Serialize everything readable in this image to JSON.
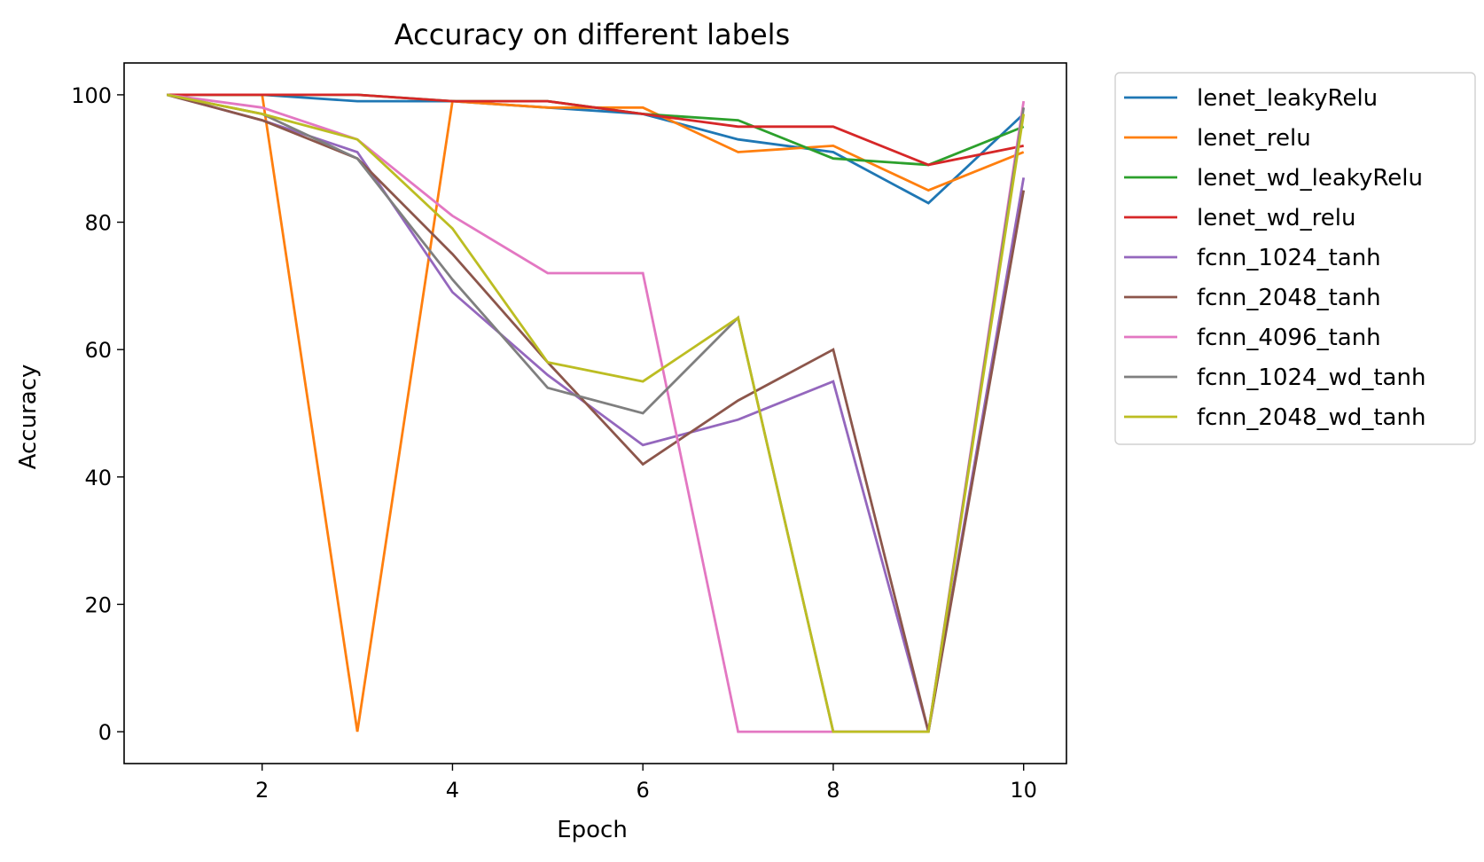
{
  "chart_data": {
    "type": "line",
    "title": "Accuracy on different labels",
    "xlabel": "Epoch",
    "ylabel": "Accuracy",
    "xlim": [
      0.55,
      10.45
    ],
    "ylim": [
      -5,
      105
    ],
    "xticks": [
      2,
      4,
      6,
      8,
      10
    ],
    "yticks": [
      0,
      20,
      40,
      60,
      80,
      100
    ],
    "grid": false,
    "legend_position": "outside-right",
    "x": [
      1,
      2,
      3,
      4,
      5,
      6,
      7,
      8,
      9,
      10
    ],
    "series": [
      {
        "name": "lenet_leakyRelu",
        "color": "#1f77b4",
        "values": [
          100,
          100,
          99,
          99,
          98,
          97,
          93,
          91,
          83,
          97
        ]
      },
      {
        "name": "lenet_relu",
        "color": "#ff7f0e",
        "values": [
          100,
          100,
          0,
          99,
          98,
          98,
          91,
          92,
          85,
          91
        ]
      },
      {
        "name": "lenet_wd_leakyRelu",
        "color": "#2ca02c",
        "values": [
          100,
          100,
          100,
          99,
          99,
          97,
          96,
          90,
          89,
          95
        ]
      },
      {
        "name": "lenet_wd_relu",
        "color": "#d62728",
        "values": [
          100,
          100,
          100,
          99,
          99,
          97,
          95,
          95,
          89,
          92
        ]
      },
      {
        "name": "fcnn_1024_tanh",
        "color": "#9467bd",
        "values": [
          100,
          96,
          91,
          69,
          56,
          45,
          49,
          55,
          0,
          87
        ]
      },
      {
        "name": "fcnn_2048_tanh",
        "color": "#8c564b",
        "values": [
          100,
          96,
          90,
          75,
          58,
          42,
          52,
          60,
          0,
          85
        ]
      },
      {
        "name": "fcnn_4096_tanh",
        "color": "#e377c2",
        "values": [
          100,
          98,
          93,
          81,
          72,
          72,
          0,
          0,
          0,
          99
        ]
      },
      {
        "name": "fcnn_1024_wd_tanh",
        "color": "#7f7f7f",
        "values": [
          100,
          97,
          90,
          71,
          54,
          50,
          65,
          0,
          0,
          98
        ]
      },
      {
        "name": "fcnn_2048_wd_tanh",
        "color": "#bcbd22",
        "values": [
          100,
          97,
          93,
          79,
          58,
          55,
          65,
          0,
          0,
          97
        ]
      }
    ]
  }
}
